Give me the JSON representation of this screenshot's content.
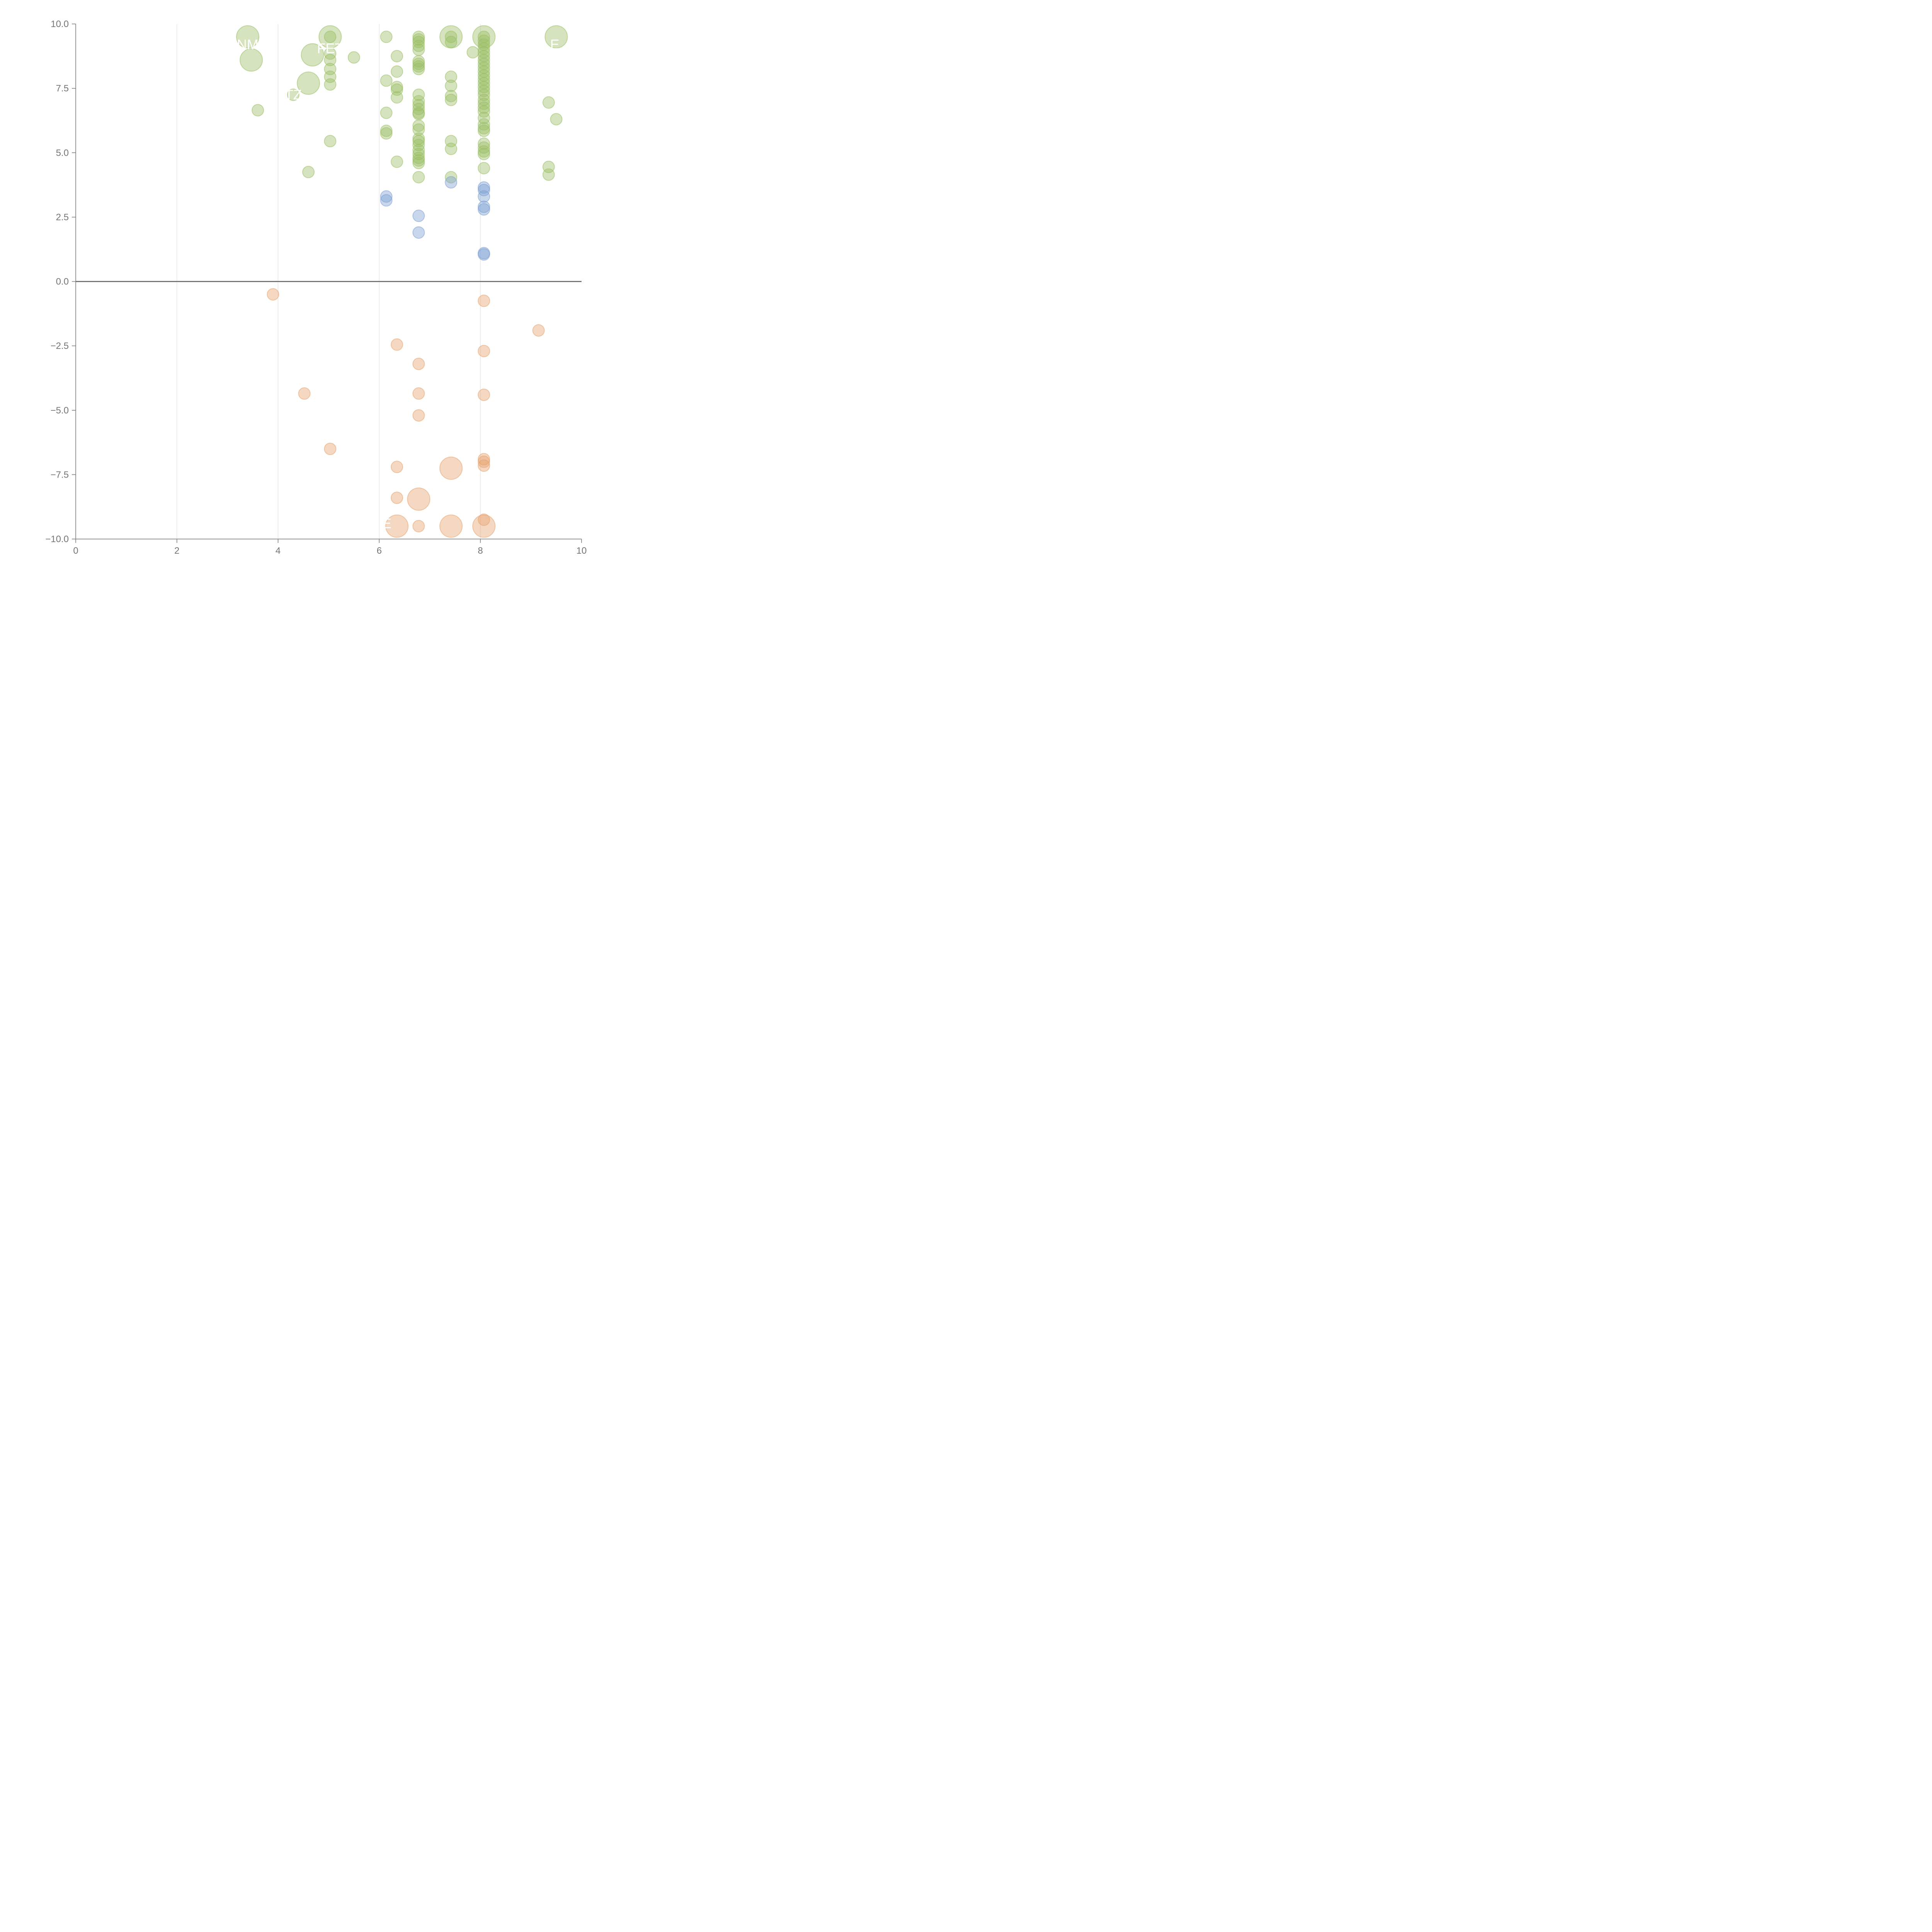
{
  "colors": {
    "positive_high": "#9bbe64",
    "positive_low": "#7c9fd2",
    "negative": "#e6a26e",
    "axis": "#757575",
    "grid": "#dddddd",
    "label": "#ffffff"
  },
  "chart_data": {
    "type": "scatter",
    "title": "",
    "xlabel": "",
    "ylabel": "",
    "xlim": [
      0,
      10
    ],
    "ylim": [
      -10,
      10
    ],
    "x_ticks": [
      "0",
      "2",
      "4",
      "6",
      "8",
      "10"
    ],
    "y_ticks": [
      "10.0",
      "7.5",
      "5.0",
      "2.5",
      "0.0",
      "−2.5",
      "−5.0",
      "−7.5",
      "−10.0"
    ],
    "x_tick_values": [
      0,
      2,
      4,
      6,
      8,
      10
    ],
    "y_tick_values": [
      10,
      7.5,
      5,
      2.5,
      0,
      -2.5,
      -5,
      -7.5,
      -10
    ],
    "grid_x": [
      2,
      4,
      6,
      8
    ],
    "series": [
      {
        "name": "positive-high",
        "color_key": "positive_high",
        "points": [
          {
            "x": 3.4,
            "y": 9.5,
            "s": 2
          },
          {
            "x": 3.47,
            "y": 8.6,
            "s": 2
          },
          {
            "x": 3.6,
            "y": 6.65,
            "s": 1
          },
          {
            "x": 4.3,
            "y": 7.25,
            "s": 1
          },
          {
            "x": 4.6,
            "y": 4.25,
            "s": 1
          },
          {
            "x": 4.6,
            "y": 7.7,
            "s": 2
          },
          {
            "x": 4.68,
            "y": 8.8,
            "s": 2
          },
          {
            "x": 5.03,
            "y": 9.5,
            "s": 2
          },
          {
            "x": 5.03,
            "y": 9.5,
            "s": 1
          },
          {
            "x": 5.03,
            "y": 8.85,
            "s": 1
          },
          {
            "x": 5.03,
            "y": 8.6,
            "s": 1
          },
          {
            "x": 5.03,
            "y": 8.25,
            "s": 1
          },
          {
            "x": 5.03,
            "y": 7.95,
            "s": 1
          },
          {
            "x": 5.03,
            "y": 7.65,
            "s": 1
          },
          {
            "x": 5.03,
            "y": 5.45,
            "s": 1
          },
          {
            "x": 5.5,
            "y": 8.7,
            "s": 1
          },
          {
            "x": 6.14,
            "y": 9.5,
            "s": 1
          },
          {
            "x": 6.14,
            "y": 7.8,
            "s": 1
          },
          {
            "x": 6.14,
            "y": 6.55,
            "s": 1
          },
          {
            "x": 6.14,
            "y": 5.85,
            "s": 1
          },
          {
            "x": 6.14,
            "y": 5.75,
            "s": 1
          },
          {
            "x": 6.35,
            "y": 8.75,
            "s": 1
          },
          {
            "x": 6.35,
            "y": 8.15,
            "s": 1
          },
          {
            "x": 6.35,
            "y": 7.55,
            "s": 1
          },
          {
            "x": 6.35,
            "y": 7.45,
            "s": 1
          },
          {
            "x": 6.35,
            "y": 7.15,
            "s": 1
          },
          {
            "x": 6.35,
            "y": 4.65,
            "s": 1
          },
          {
            "x": 6.78,
            "y": 9.5,
            "s": 1
          },
          {
            "x": 6.78,
            "y": 9.4,
            "s": 1
          },
          {
            "x": 6.78,
            "y": 9.3,
            "s": 1
          },
          {
            "x": 6.78,
            "y": 9.15,
            "s": 1
          },
          {
            "x": 6.78,
            "y": 9.0,
            "s": 1
          },
          {
            "x": 6.78,
            "y": 8.55,
            "s": 1
          },
          {
            "x": 6.78,
            "y": 8.45,
            "s": 1
          },
          {
            "x": 6.78,
            "y": 8.35,
            "s": 1
          },
          {
            "x": 6.78,
            "y": 8.25,
            "s": 1
          },
          {
            "x": 6.78,
            "y": 7.25,
            "s": 1
          },
          {
            "x": 6.78,
            "y": 7.0,
            "s": 1
          },
          {
            "x": 6.78,
            "y": 6.85,
            "s": 1
          },
          {
            "x": 6.78,
            "y": 6.7,
            "s": 1
          },
          {
            "x": 6.78,
            "y": 6.55,
            "s": 1
          },
          {
            "x": 6.78,
            "y": 6.5,
            "s": 1
          },
          {
            "x": 6.78,
            "y": 6.05,
            "s": 1
          },
          {
            "x": 6.78,
            "y": 5.9,
            "s": 1
          },
          {
            "x": 6.78,
            "y": 5.55,
            "s": 1
          },
          {
            "x": 6.78,
            "y": 5.45,
            "s": 1
          },
          {
            "x": 6.78,
            "y": 5.3,
            "s": 1
          },
          {
            "x": 6.78,
            "y": 5.1,
            "s": 1
          },
          {
            "x": 6.78,
            "y": 4.95,
            "s": 1
          },
          {
            "x": 6.78,
            "y": 4.8,
            "s": 1
          },
          {
            "x": 6.78,
            "y": 4.7,
            "s": 1
          },
          {
            "x": 6.78,
            "y": 4.6,
            "s": 1
          },
          {
            "x": 6.78,
            "y": 4.05,
            "s": 1
          },
          {
            "x": 7.42,
            "y": 9.5,
            "s": 2
          },
          {
            "x": 7.42,
            "y": 9.5,
            "s": 1
          },
          {
            "x": 7.42,
            "y": 9.3,
            "s": 1
          },
          {
            "x": 7.42,
            "y": 7.95,
            "s": 1
          },
          {
            "x": 7.42,
            "y": 7.6,
            "s": 1
          },
          {
            "x": 7.42,
            "y": 7.2,
            "s": 1
          },
          {
            "x": 7.42,
            "y": 7.05,
            "s": 1
          },
          {
            "x": 7.42,
            "y": 5.45,
            "s": 1
          },
          {
            "x": 7.42,
            "y": 5.15,
            "s": 1
          },
          {
            "x": 7.42,
            "y": 4.05,
            "s": 1
          },
          {
            "x": 7.85,
            "y": 8.9,
            "s": 1
          },
          {
            "x": 8.07,
            "y": 9.5,
            "s": 2
          },
          {
            "x": 8.07,
            "y": 9.5,
            "s": 1
          },
          {
            "x": 8.07,
            "y": 9.35,
            "s": 1
          },
          {
            "x": 8.07,
            "y": 9.2,
            "s": 1
          },
          {
            "x": 8.07,
            "y": 9.05,
            "s": 1
          },
          {
            "x": 8.07,
            "y": 8.9,
            "s": 1
          },
          {
            "x": 8.07,
            "y": 8.75,
            "s": 1
          },
          {
            "x": 8.07,
            "y": 8.6,
            "s": 1
          },
          {
            "x": 8.07,
            "y": 8.45,
            "s": 1
          },
          {
            "x": 8.07,
            "y": 8.3,
            "s": 1
          },
          {
            "x": 8.07,
            "y": 8.15,
            "s": 1
          },
          {
            "x": 8.07,
            "y": 8.0,
            "s": 1
          },
          {
            "x": 8.07,
            "y": 7.85,
            "s": 1
          },
          {
            "x": 8.07,
            "y": 7.7,
            "s": 1
          },
          {
            "x": 8.07,
            "y": 7.55,
            "s": 1
          },
          {
            "x": 8.07,
            "y": 7.4,
            "s": 1
          },
          {
            "x": 8.07,
            "y": 7.25,
            "s": 1
          },
          {
            "x": 8.07,
            "y": 7.05,
            "s": 1
          },
          {
            "x": 8.07,
            "y": 6.9,
            "s": 1
          },
          {
            "x": 8.07,
            "y": 6.75,
            "s": 1
          },
          {
            "x": 8.07,
            "y": 6.6,
            "s": 1
          },
          {
            "x": 8.07,
            "y": 6.35,
            "s": 1
          },
          {
            "x": 8.07,
            "y": 6.1,
            "s": 1
          },
          {
            "x": 8.07,
            "y": 5.95,
            "s": 1
          },
          {
            "x": 8.07,
            "y": 5.85,
            "s": 1
          },
          {
            "x": 8.07,
            "y": 5.35,
            "s": 1
          },
          {
            "x": 8.07,
            "y": 5.2,
            "s": 1
          },
          {
            "x": 8.07,
            "y": 5.05,
            "s": 1
          },
          {
            "x": 8.07,
            "y": 4.95,
            "s": 1
          },
          {
            "x": 8.07,
            "y": 4.4,
            "s": 1
          },
          {
            "x": 9.35,
            "y": 6.95,
            "s": 1
          },
          {
            "x": 9.35,
            "y": 4.45,
            "s": 1
          },
          {
            "x": 9.35,
            "y": 4.15,
            "s": 1
          },
          {
            "x": 9.5,
            "y": 9.5,
            "s": 2
          },
          {
            "x": 9.5,
            "y": 6.3,
            "s": 1
          }
        ]
      },
      {
        "name": "positive-low",
        "color_key": "positive_low",
        "points": [
          {
            "x": 6.14,
            "y": 3.3,
            "s": 1
          },
          {
            "x": 6.14,
            "y": 3.15,
            "s": 1
          },
          {
            "x": 6.78,
            "y": 2.55,
            "s": 1
          },
          {
            "x": 6.78,
            "y": 1.9,
            "s": 1
          },
          {
            "x": 7.42,
            "y": 3.85,
            "s": 1
          },
          {
            "x": 8.07,
            "y": 3.65,
            "s": 1
          },
          {
            "x": 8.07,
            "y": 3.55,
            "s": 1
          },
          {
            "x": 8.07,
            "y": 3.3,
            "s": 1
          },
          {
            "x": 8.07,
            "y": 2.9,
            "s": 1
          },
          {
            "x": 8.07,
            "y": 2.8,
            "s": 1
          },
          {
            "x": 8.07,
            "y": 1.1,
            "s": 1
          },
          {
            "x": 8.07,
            "y": 1.05,
            "s": 1
          }
        ]
      },
      {
        "name": "negative",
        "color_key": "negative",
        "points": [
          {
            "x": 3.9,
            "y": -0.5,
            "s": 1
          },
          {
            "x": 4.52,
            "y": -4.35,
            "s": 1
          },
          {
            "x": 5.03,
            "y": -6.5,
            "s": 1
          },
          {
            "x": 6.35,
            "y": -2.45,
            "s": 1
          },
          {
            "x": 6.35,
            "y": -7.2,
            "s": 1
          },
          {
            "x": 6.35,
            "y": -8.4,
            "s": 1
          },
          {
            "x": 6.35,
            "y": -9.5,
            "s": 2
          },
          {
            "x": 6.78,
            "y": -3.2,
            "s": 1
          },
          {
            "x": 6.78,
            "y": -4.35,
            "s": 1
          },
          {
            "x": 6.78,
            "y": -5.2,
            "s": 1
          },
          {
            "x": 6.78,
            "y": -8.45,
            "s": 2
          },
          {
            "x": 6.78,
            "y": -9.5,
            "s": 1
          },
          {
            "x": 7.42,
            "y": -7.25,
            "s": 2
          },
          {
            "x": 7.42,
            "y": -9.5,
            "s": 2
          },
          {
            "x": 8.07,
            "y": -0.75,
            "s": 1
          },
          {
            "x": 8.07,
            "y": -2.7,
            "s": 1
          },
          {
            "x": 8.07,
            "y": -4.4,
            "s": 1
          },
          {
            "x": 8.07,
            "y": -6.9,
            "s": 1
          },
          {
            "x": 8.07,
            "y": -7.0,
            "s": 1
          },
          {
            "x": 8.07,
            "y": -7.15,
            "s": 1
          },
          {
            "x": 8.07,
            "y": -9.25,
            "s": 1
          },
          {
            "x": 8.07,
            "y": -9.5,
            "s": 2
          },
          {
            "x": 9.15,
            "y": -1.9,
            "s": 1
          }
        ]
      }
    ],
    "annotations": [
      {
        "text": "NM",
        "x": 3.4,
        "y": 9.2
      },
      {
        "text": "FET",
        "x": 5.03,
        "y": 9.05
      },
      {
        "text": "TZ",
        "x": 4.3,
        "y": 7.25
      },
      {
        "text": "E",
        "x": 9.47,
        "y": 9.2
      },
      {
        "text": "E",
        "x": 6.15,
        "y": -9.4
      }
    ]
  }
}
